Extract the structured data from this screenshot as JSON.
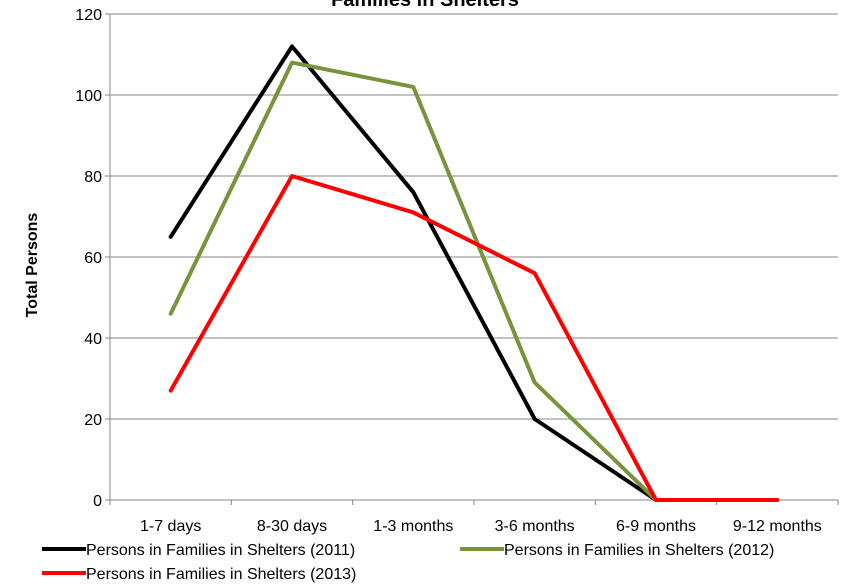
{
  "chart_data": {
    "type": "line",
    "title": "Families in Shelters",
    "xlabel": "",
    "ylabel": "Total Persons",
    "ylim": [
      0,
      120
    ],
    "yticks": [
      "0",
      "20",
      "40",
      "60",
      "80",
      "100",
      "120"
    ],
    "categories": [
      "1-7 days",
      "8-30 days",
      "1-3 months",
      "3-6 months",
      "6-9 months",
      "9-12 months"
    ],
    "grid": "horizontal",
    "legend_position": "bottom",
    "series": [
      {
        "name": "Persons in Families in Shelters (2011)",
        "color": "#000000",
        "values": [
          65,
          112,
          76,
          20,
          0,
          null
        ]
      },
      {
        "name": "Persons in Families in Shelters (2012)",
        "color": "#77933C",
        "values": [
          46,
          108,
          102,
          29,
          0,
          null
        ]
      },
      {
        "name": "Persons in Families in Shelters (2013)",
        "color": "#FF0000",
        "values": [
          27,
          80,
          71,
          56,
          0,
          0
        ]
      }
    ]
  }
}
